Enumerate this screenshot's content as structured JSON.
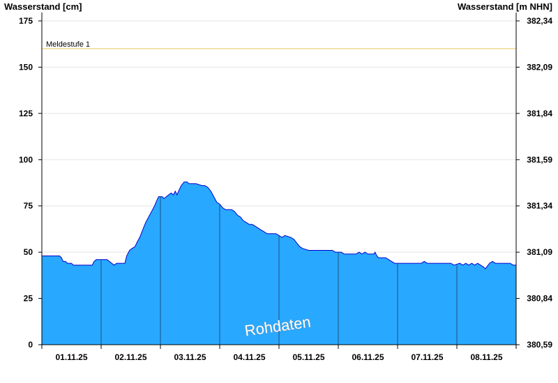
{
  "chart_data": {
    "type": "area",
    "left_axis_title": "Wasserstand [cm]",
    "right_axis_title": "Wasserstand [m NHN]",
    "y_ticks_left": [
      "0",
      "25",
      "50",
      "75",
      "100",
      "125",
      "150",
      "175"
    ],
    "y_ticks_right": [
      "380,59",
      "380,84",
      "381,09",
      "381,34",
      "381,59",
      "381,84",
      "382,09",
      "382,34"
    ],
    "ylim": [
      0,
      175
    ],
    "x_range_days": [
      0,
      8
    ],
    "x_labels": [
      "01.11.25",
      "02.11.25",
      "03.11.25",
      "04.11.25",
      "05.11.25",
      "06.11.25",
      "07.11.25",
      "08.11.25"
    ],
    "grid": true,
    "threshold": {
      "label": "Meldestufe 1",
      "value": 160,
      "color": "#e6c65a"
    },
    "area_color": "#29a8ff",
    "line_color": "#0000cc",
    "watermark": "Rohdaten",
    "series": [
      {
        "points": [
          [
            0.0,
            48
          ],
          [
            0.3,
            48
          ],
          [
            0.33,
            47
          ],
          [
            0.36,
            45
          ],
          [
            0.4,
            45
          ],
          [
            0.43,
            44
          ],
          [
            0.5,
            44
          ],
          [
            0.53,
            43
          ],
          [
            0.7,
            43
          ],
          [
            0.85,
            43
          ],
          [
            0.88,
            45
          ],
          [
            0.92,
            46
          ],
          [
            1.1,
            46
          ],
          [
            1.14,
            45
          ],
          [
            1.18,
            44
          ],
          [
            1.22,
            43
          ],
          [
            1.26,
            44
          ],
          [
            1.4,
            44
          ],
          [
            1.43,
            48
          ],
          [
            1.48,
            51
          ],
          [
            1.52,
            52
          ],
          [
            1.57,
            53
          ],
          [
            1.6,
            55
          ],
          [
            1.65,
            58
          ],
          [
            1.7,
            62
          ],
          [
            1.75,
            66
          ],
          [
            1.8,
            69
          ],
          [
            1.85,
            72
          ],
          [
            1.9,
            75
          ],
          [
            1.94,
            78
          ],
          [
            1.97,
            80
          ],
          [
            2.03,
            80
          ],
          [
            2.06,
            79
          ],
          [
            2.1,
            80
          ],
          [
            2.14,
            81
          ],
          [
            2.18,
            82
          ],
          [
            2.22,
            81
          ],
          [
            2.25,
            83
          ],
          [
            2.28,
            81
          ],
          [
            2.32,
            84
          ],
          [
            2.35,
            86
          ],
          [
            2.4,
            88
          ],
          [
            2.45,
            88
          ],
          [
            2.48,
            87
          ],
          [
            2.6,
            87
          ],
          [
            2.7,
            86
          ],
          [
            2.75,
            86
          ],
          [
            2.8,
            85
          ],
          [
            2.85,
            83
          ],
          [
            2.9,
            80
          ],
          [
            2.95,
            77
          ],
          [
            3.0,
            76
          ],
          [
            3.05,
            74
          ],
          [
            3.1,
            73
          ],
          [
            3.2,
            73
          ],
          [
            3.25,
            72
          ],
          [
            3.3,
            70
          ],
          [
            3.35,
            69
          ],
          [
            3.4,
            67
          ],
          [
            3.45,
            66
          ],
          [
            3.5,
            65
          ],
          [
            3.55,
            65
          ],
          [
            3.6,
            64
          ],
          [
            3.65,
            63
          ],
          [
            3.7,
            62
          ],
          [
            3.75,
            61
          ],
          [
            3.8,
            60
          ],
          [
            3.95,
            60
          ],
          [
            4.0,
            59
          ],
          [
            4.05,
            58
          ],
          [
            4.1,
            59
          ],
          [
            4.2,
            58
          ],
          [
            4.25,
            57
          ],
          [
            4.3,
            55
          ],
          [
            4.35,
            53
          ],
          [
            4.4,
            52
          ],
          [
            4.5,
            51
          ],
          [
            4.75,
            51
          ],
          [
            4.9,
            51
          ],
          [
            4.95,
            50
          ],
          [
            5.05,
            50
          ],
          [
            5.1,
            49
          ],
          [
            5.3,
            49
          ],
          [
            5.35,
            50
          ],
          [
            5.4,
            49
          ],
          [
            5.45,
            50
          ],
          [
            5.5,
            49
          ],
          [
            5.6,
            49
          ],
          [
            5.62,
            50
          ],
          [
            5.65,
            48
          ],
          [
            5.68,
            47
          ],
          [
            5.8,
            47
          ],
          [
            5.85,
            46
          ],
          [
            5.9,
            45
          ],
          [
            5.95,
            44
          ],
          [
            6.1,
            44
          ],
          [
            6.4,
            44
          ],
          [
            6.45,
            45
          ],
          [
            6.5,
            44
          ],
          [
            6.9,
            44
          ],
          [
            6.95,
            43
          ],
          [
            7.05,
            44
          ],
          [
            7.1,
            43
          ],
          [
            7.15,
            44
          ],
          [
            7.2,
            43
          ],
          [
            7.25,
            44
          ],
          [
            7.3,
            43
          ],
          [
            7.35,
            44
          ],
          [
            7.4,
            43
          ],
          [
            7.45,
            42
          ],
          [
            7.48,
            41
          ],
          [
            7.55,
            44
          ],
          [
            7.6,
            45
          ],
          [
            7.65,
            44
          ],
          [
            7.9,
            44
          ],
          [
            7.95,
            43
          ],
          [
            8.0,
            43
          ]
        ]
      }
    ]
  }
}
